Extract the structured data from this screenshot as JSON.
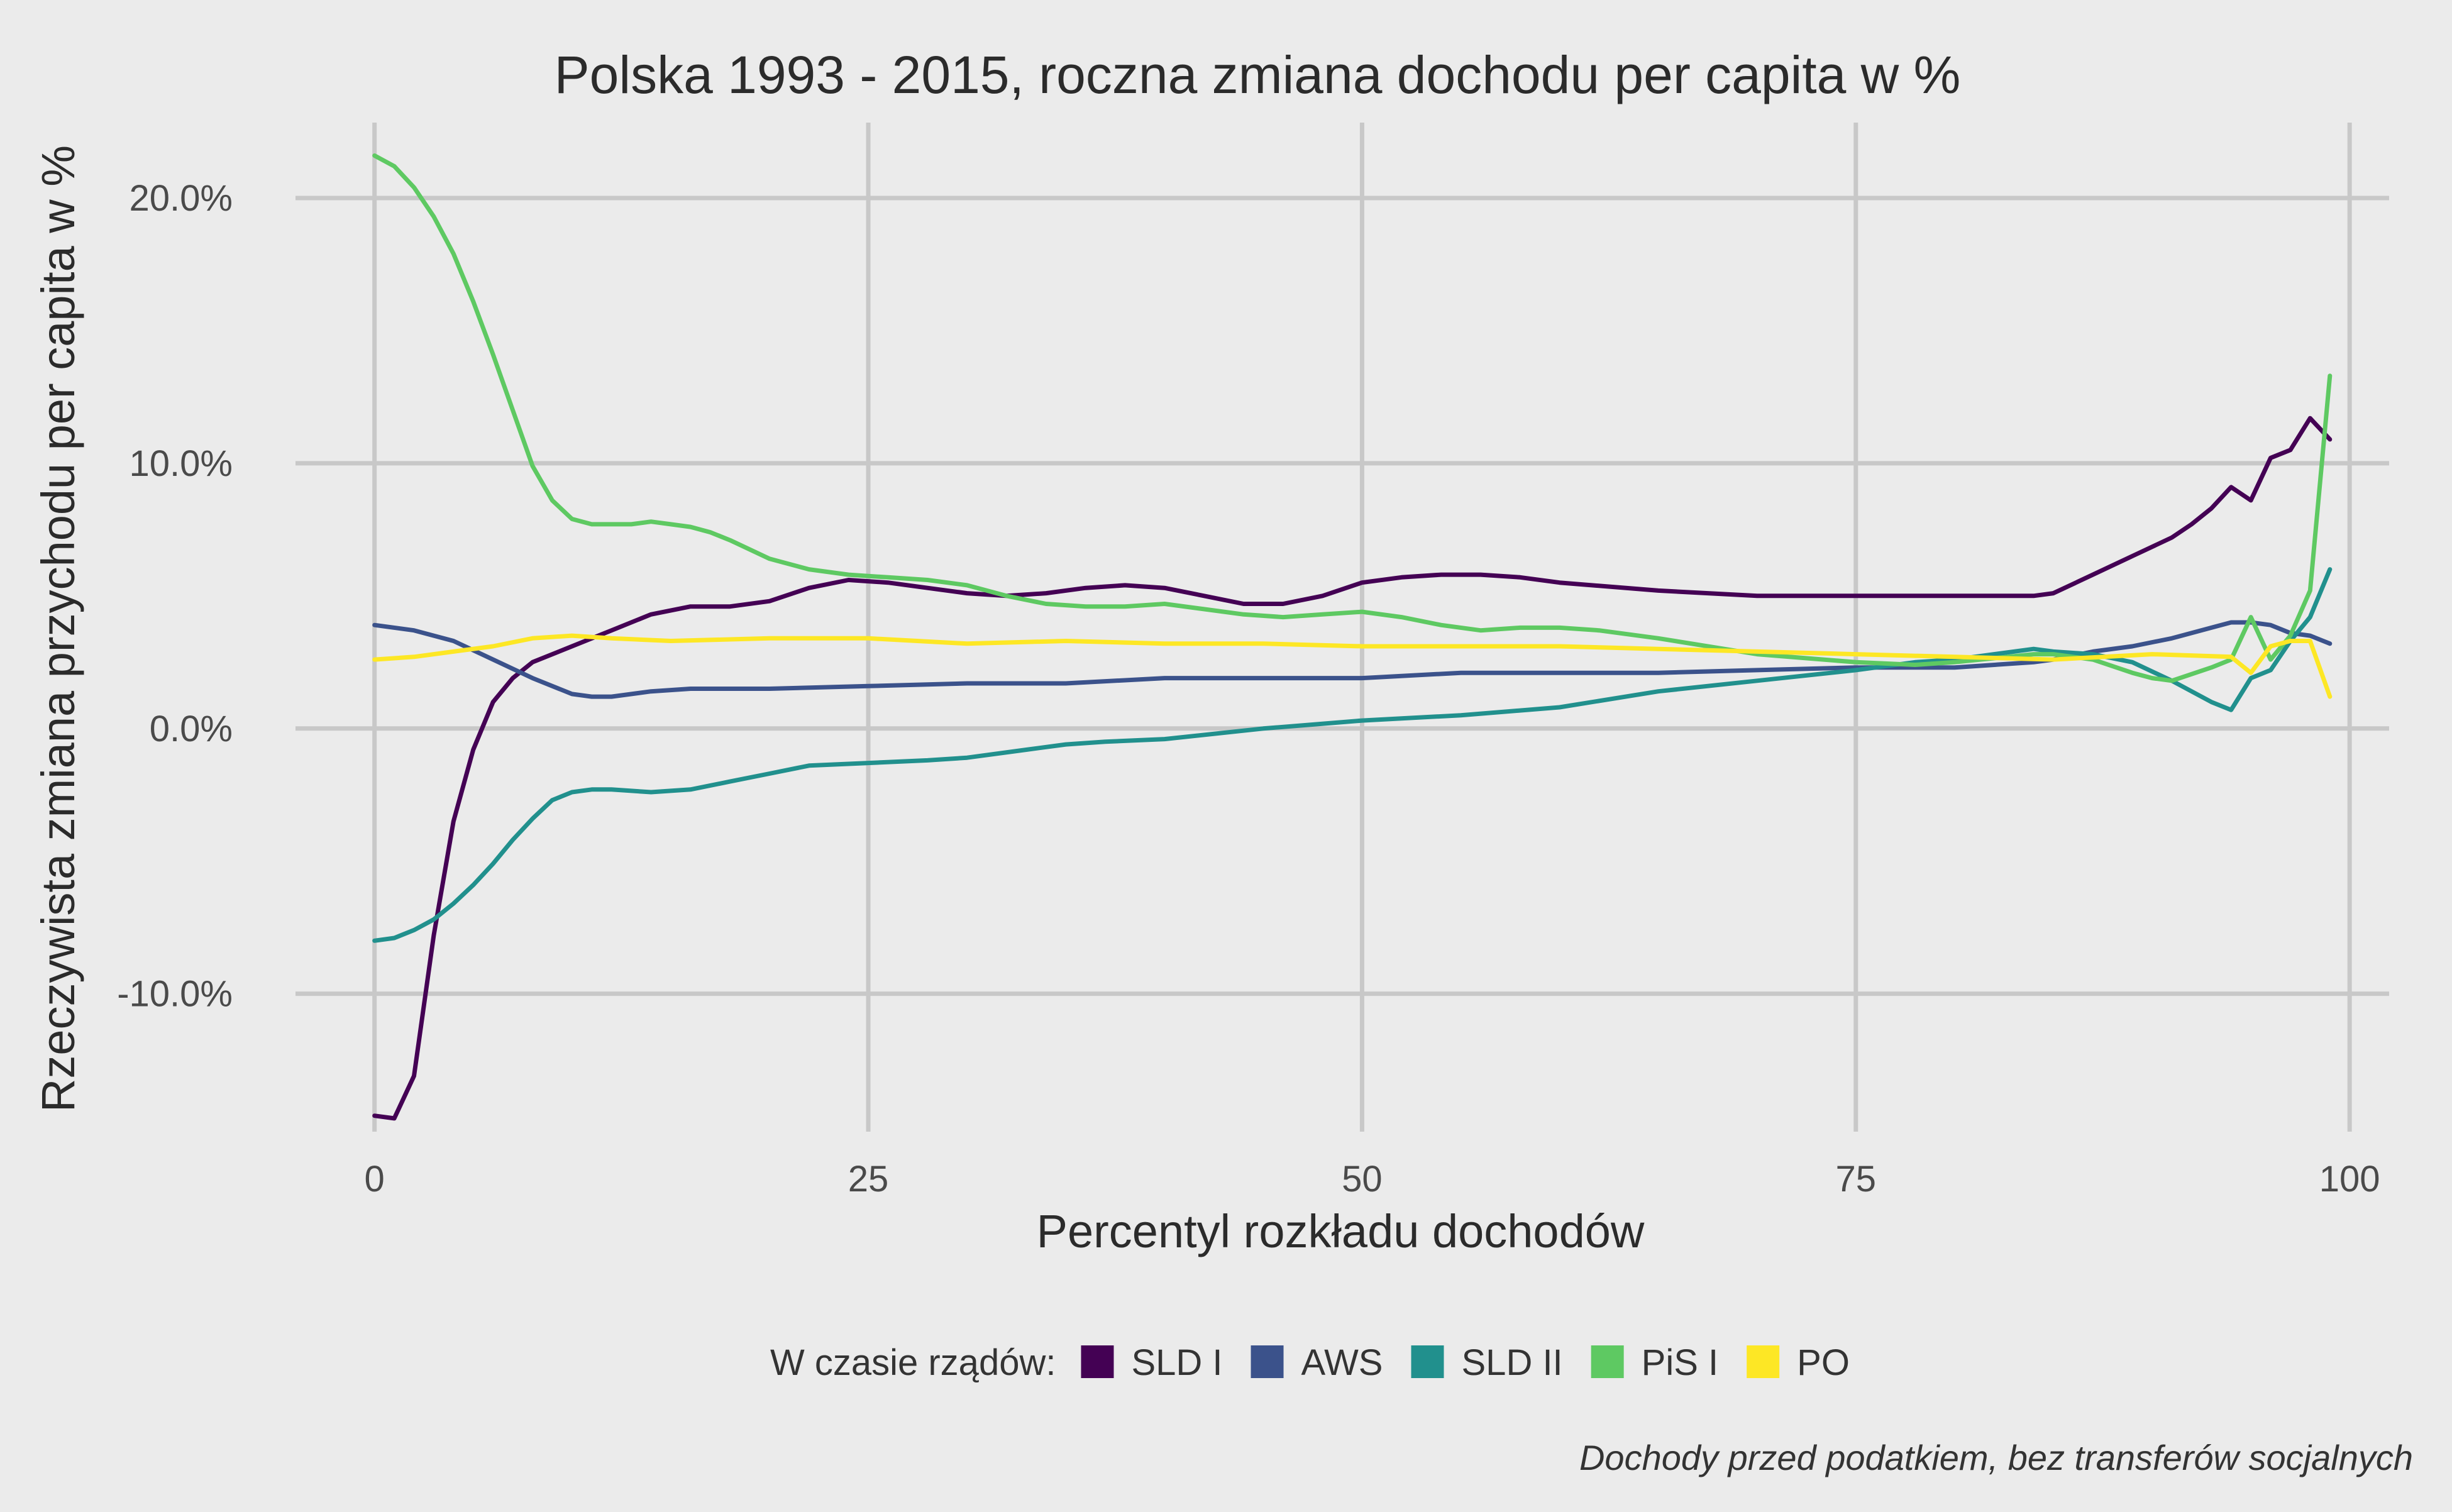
{
  "chart_data": {
    "type": "line",
    "title": "Polska 1993 - 2015, roczna zmiana dochodu per capita w %",
    "xlabel": "Percentyl rozkładu dochodów",
    "ylabel": "Rzeczywista zmiana przychodu per capita w %",
    "caption": "Dochody przed podatkiem, bez transferów socjalnych",
    "xlim": [
      -4,
      102
    ],
    "ylim": [
      -0.152,
      0.232
    ],
    "x_ticks": [
      0,
      25,
      50,
      75,
      100
    ],
    "x_tick_labels": [
      "0",
      "25",
      "50",
      "75",
      "100"
    ],
    "y_ticks": [
      -0.1,
      0.0,
      0.1,
      0.2
    ],
    "y_tick_labels": [
      "-10.0%",
      "0.0%",
      "10.0%",
      "20.0%"
    ],
    "grid": true,
    "legend": {
      "position": "bottom",
      "title": "W czasie rządów:"
    },
    "series": [
      {
        "name": "SLD I",
        "color": "#440154",
        "x": [
          0,
          1,
          2,
          3,
          4,
          5,
          6,
          7,
          8,
          10,
          12,
          14,
          16,
          18,
          20,
          22,
          24,
          26,
          28,
          30,
          32,
          34,
          36,
          38,
          40,
          42,
          44,
          46,
          48,
          50,
          52,
          54,
          56,
          58,
          60,
          65,
          70,
          75,
          80,
          84,
          85,
          87,
          89,
          91,
          92,
          93,
          94,
          95,
          96,
          97,
          98,
          99
        ],
        "y": [
          -0.146,
          -0.147,
          -0.131,
          -0.078,
          -0.035,
          -0.008,
          0.01,
          0.019,
          0.025,
          0.031,
          0.037,
          0.043,
          0.046,
          0.046,
          0.048,
          0.053,
          0.056,
          0.055,
          0.053,
          0.051,
          0.05,
          0.051,
          0.053,
          0.054,
          0.053,
          0.05,
          0.047,
          0.047,
          0.05,
          0.055,
          0.057,
          0.058,
          0.058,
          0.057,
          0.055,
          0.052,
          0.05,
          0.05,
          0.05,
          0.05,
          0.051,
          0.058,
          0.065,
          0.072,
          0.077,
          0.083,
          0.091,
          0.086,
          0.102,
          0.105,
          0.117,
          0.109
        ]
      },
      {
        "name": "AWS",
        "color": "#3b528b",
        "x": [
          0,
          2,
          4,
          6,
          8,
          10,
          11,
          12,
          14,
          16,
          18,
          20,
          25,
          30,
          35,
          40,
          45,
          50,
          55,
          60,
          65,
          70,
          75,
          80,
          84,
          85,
          87,
          89,
          91,
          93,
          94,
          95,
          96,
          97,
          98,
          99
        ],
        "y": [
          0.039,
          0.037,
          0.033,
          0.026,
          0.019,
          0.013,
          0.012,
          0.012,
          0.014,
          0.015,
          0.015,
          0.015,
          0.016,
          0.017,
          0.017,
          0.019,
          0.019,
          0.019,
          0.021,
          0.021,
          0.021,
          0.022,
          0.023,
          0.023,
          0.025,
          0.026,
          0.029,
          0.031,
          0.034,
          0.038,
          0.04,
          0.04,
          0.039,
          0.036,
          0.035,
          0.032
        ]
      },
      {
        "name": "SLD II",
        "color": "#21908d",
        "x": [
          0,
          1,
          2,
          3,
          4,
          5,
          6,
          7,
          8,
          9,
          10,
          11,
          12,
          14,
          16,
          18,
          20,
          22,
          25,
          28,
          30,
          33,
          35,
          37,
          40,
          45,
          50,
          55,
          60,
          65,
          70,
          75,
          78,
          80,
          82,
          84,
          85,
          87,
          89,
          91,
          93,
          94,
          95,
          96,
          97,
          98,
          99
        ],
        "y": [
          -0.08,
          -0.079,
          -0.076,
          -0.072,
          -0.066,
          -0.059,
          -0.051,
          -0.042,
          -0.034,
          -0.027,
          -0.024,
          -0.023,
          -0.023,
          -0.024,
          -0.023,
          -0.02,
          -0.017,
          -0.014,
          -0.013,
          -0.012,
          -0.011,
          -0.008,
          -0.006,
          -0.005,
          -0.004,
          0.0,
          0.003,
          0.005,
          0.008,
          0.014,
          0.018,
          0.022,
          0.025,
          0.026,
          0.028,
          0.03,
          0.029,
          0.028,
          0.025,
          0.018,
          0.01,
          0.007,
          0.019,
          0.022,
          0.033,
          0.042,
          0.06
        ]
      },
      {
        "name": "PiS I",
        "color": "#5ec962",
        "x": [
          0,
          1,
          2,
          3,
          4,
          5,
          6,
          7,
          8,
          9,
          10,
          11,
          12,
          13,
          14,
          15,
          16,
          17,
          18,
          20,
          22,
          24,
          26,
          28,
          30,
          32,
          34,
          36,
          38,
          40,
          42,
          44,
          46,
          48,
          50,
          52,
          54,
          56,
          58,
          60,
          62,
          65,
          70,
          75,
          78,
          80,
          84,
          85,
          87,
          89,
          90,
          91,
          93,
          94,
          95,
          96,
          97,
          98,
          99
        ],
        "y": [
          0.216,
          0.212,
          0.204,
          0.193,
          0.179,
          0.161,
          0.141,
          0.12,
          0.099,
          0.086,
          0.079,
          0.077,
          0.077,
          0.077,
          0.078,
          0.077,
          0.076,
          0.074,
          0.071,
          0.064,
          0.06,
          0.058,
          0.057,
          0.056,
          0.054,
          0.05,
          0.047,
          0.046,
          0.046,
          0.047,
          0.045,
          0.043,
          0.042,
          0.043,
          0.044,
          0.042,
          0.039,
          0.037,
          0.038,
          0.038,
          0.037,
          0.034,
          0.028,
          0.025,
          0.024,
          0.025,
          0.028,
          0.028,
          0.026,
          0.021,
          0.019,
          0.018,
          0.023,
          0.026,
          0.042,
          0.026,
          0.035,
          0.052,
          0.133
        ]
      },
      {
        "name": "PO",
        "color": "#fde725",
        "x": [
          0,
          2,
          4,
          6,
          8,
          10,
          12,
          15,
          20,
          25,
          30,
          35,
          40,
          45,
          50,
          55,
          60,
          65,
          70,
          75,
          80,
          85,
          90,
          94,
          95,
          96,
          97,
          98,
          99
        ],
        "y": [
          0.026,
          0.027,
          0.029,
          0.031,
          0.034,
          0.035,
          0.034,
          0.033,
          0.034,
          0.034,
          0.032,
          0.033,
          0.032,
          0.032,
          0.031,
          0.031,
          0.031,
          0.03,
          0.029,
          0.028,
          0.027,
          0.026,
          0.028,
          0.027,
          0.021,
          0.031,
          0.033,
          0.033,
          0.012
        ]
      }
    ]
  }
}
